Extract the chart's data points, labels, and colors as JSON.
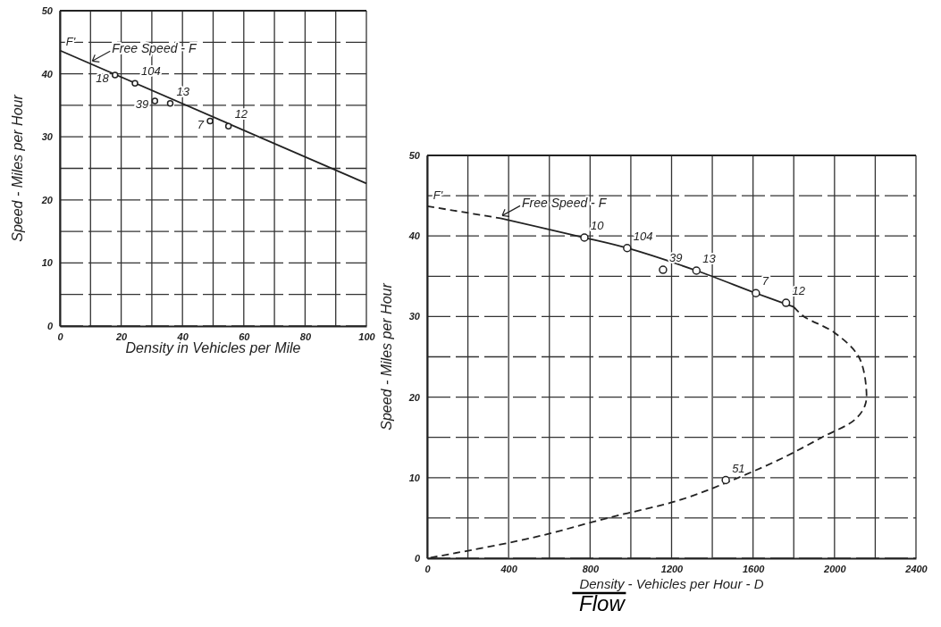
{
  "chart_data": [
    {
      "type": "line",
      "xlabel": "Density in Vehicles per Mile",
      "ylabel": "Speed - Miles per Hour",
      "xlim": [
        0,
        100
      ],
      "ylim": [
        0,
        50
      ],
      "xticks": [
        0,
        {
          "value": 10,
          "label": null
        },
        20,
        {
          "value": 30,
          "label": null
        },
        40,
        {
          "value": 50,
          "label": null
        },
        60,
        {
          "value": 70,
          "label": null
        },
        80,
        {
          "value": 90,
          "label": null
        },
        100
      ],
      "yticks": [
        0,
        {
          "value": 5,
          "label": null
        },
        10,
        {
          "value": 15,
          "label": null
        },
        20,
        {
          "value": 25,
          "label": null
        },
        30,
        {
          "value": 35,
          "label": null
        },
        40,
        {
          "value": 45,
          "label": null
        },
        50
      ],
      "grid": true,
      "series": [
        {
          "type": "line",
          "color": "#222222",
          "line_style": "solid",
          "marker": "none",
          "x": [
            0,
            100
          ],
          "values": [
            43.7,
            22.6
          ]
        },
        {
          "type": "scatter",
          "color": "#222222",
          "marker": "circle",
          "x": [
            18,
            24.5,
            31,
            36,
            49,
            55
          ],
          "values": [
            39.8,
            38.5,
            35.7,
            35.3,
            32.5,
            31.7
          ]
        }
      ],
      "annotations": [
        "F'",
        {
          "text": "Free Speed - F",
          "x": 10,
          "y": 41.6
        },
        {
          "text": "18",
          "x": 18,
          "y": 39.8
        },
        {
          "text": "104",
          "x": 24.5,
          "y": 38.5
        },
        {
          "text": "39",
          "x": 31,
          "y": 35.7
        },
        {
          "text": "13",
          "x": 36,
          "y": 35.3
        },
        {
          "text": "7",
          "x": 49,
          "y": 32.5
        },
        {
          "text": "12",
          "x": 55,
          "y": 31.7
        }
      ]
    },
    {
      "type": "line",
      "xlabel": "Density - Vehicles per Hour - D",
      "ylabel": "Speed - Miles per Hour",
      "xlim": [
        0,
        2400
      ],
      "ylim": [
        0,
        50
      ],
      "xticks": [
        0,
        {
          "value": 200,
          "label": null
        },
        400,
        {
          "value": 600,
          "label": null
        },
        800,
        {
          "value": 1000,
          "label": null
        },
        1200,
        {
          "value": 1400,
          "label": null
        },
        1600,
        {
          "value": 1800,
          "label": null
        },
        2000,
        {
          "value": 2200,
          "label": null
        },
        2400
      ],
      "yticks": [
        0,
        {
          "value": 5,
          "label": null
        },
        10,
        {
          "value": 15,
          "label": null
        },
        20,
        {
          "value": 25,
          "label": null
        },
        30,
        {
          "value": 35,
          "label": null
        },
        40,
        {
          "value": 45,
          "label": null
        },
        50
      ],
      "grid": true,
      "series": [
        {
          "type": "line",
          "color": "#222222",
          "line_style": "dashed",
          "marker": "none",
          "x": [
            0,
            360
          ],
          "values": [
            43.7,
            42.2
          ]
        },
        {
          "type": "line",
          "color": "#222222",
          "line_style": "solid",
          "marker": "none",
          "x": [
            360,
            772,
            982,
            1322,
            1614,
            1800
          ],
          "values": [
            42.2,
            39.8,
            38.5,
            35.7,
            32.9,
            31.2
          ]
        },
        {
          "type": "line",
          "color": "#222222",
          "line_style": "dashed",
          "marker": "none",
          "x": [
            1800,
            1850,
            2000,
            2119,
            2156,
            2150,
            2100,
            1938,
            1750,
            1528,
            1250,
            887,
            509,
            0
          ],
          "values": [
            31.2,
            30,
            28,
            25,
            21,
            19,
            17.2,
            15,
            12.5,
            10,
            7.3,
            5,
            2.5,
            0
          ]
        },
        {
          "type": "scatter",
          "color": "#222222",
          "marker": "circle",
          "x": [
            772,
            982,
            1158,
            1322,
            1614,
            1762,
            1466
          ],
          "values": [
            39.8,
            38.5,
            35.8,
            35.7,
            32.9,
            31.7,
            9.7
          ]
        }
      ],
      "annotations": [
        "F'",
        {
          "text": "Free Speed - F",
          "x": 360,
          "y": 42.2
        },
        {
          "text": "10",
          "x": 772,
          "y": 39.8
        },
        {
          "text": "104",
          "x": 982,
          "y": 38.5
        },
        {
          "text": "39",
          "x": 1158,
          "y": 35.8
        },
        {
          "text": "13",
          "x": 1322,
          "y": 35.7
        },
        {
          "text": "7",
          "x": 1614,
          "y": 32.9
        },
        {
          "text": "12",
          "x": 1762,
          "y": 31.7
        },
        {
          "text": "51",
          "x": 1466,
          "y": 9.7
        },
        {
          "text": "Flow"
        }
      ]
    }
  ]
}
